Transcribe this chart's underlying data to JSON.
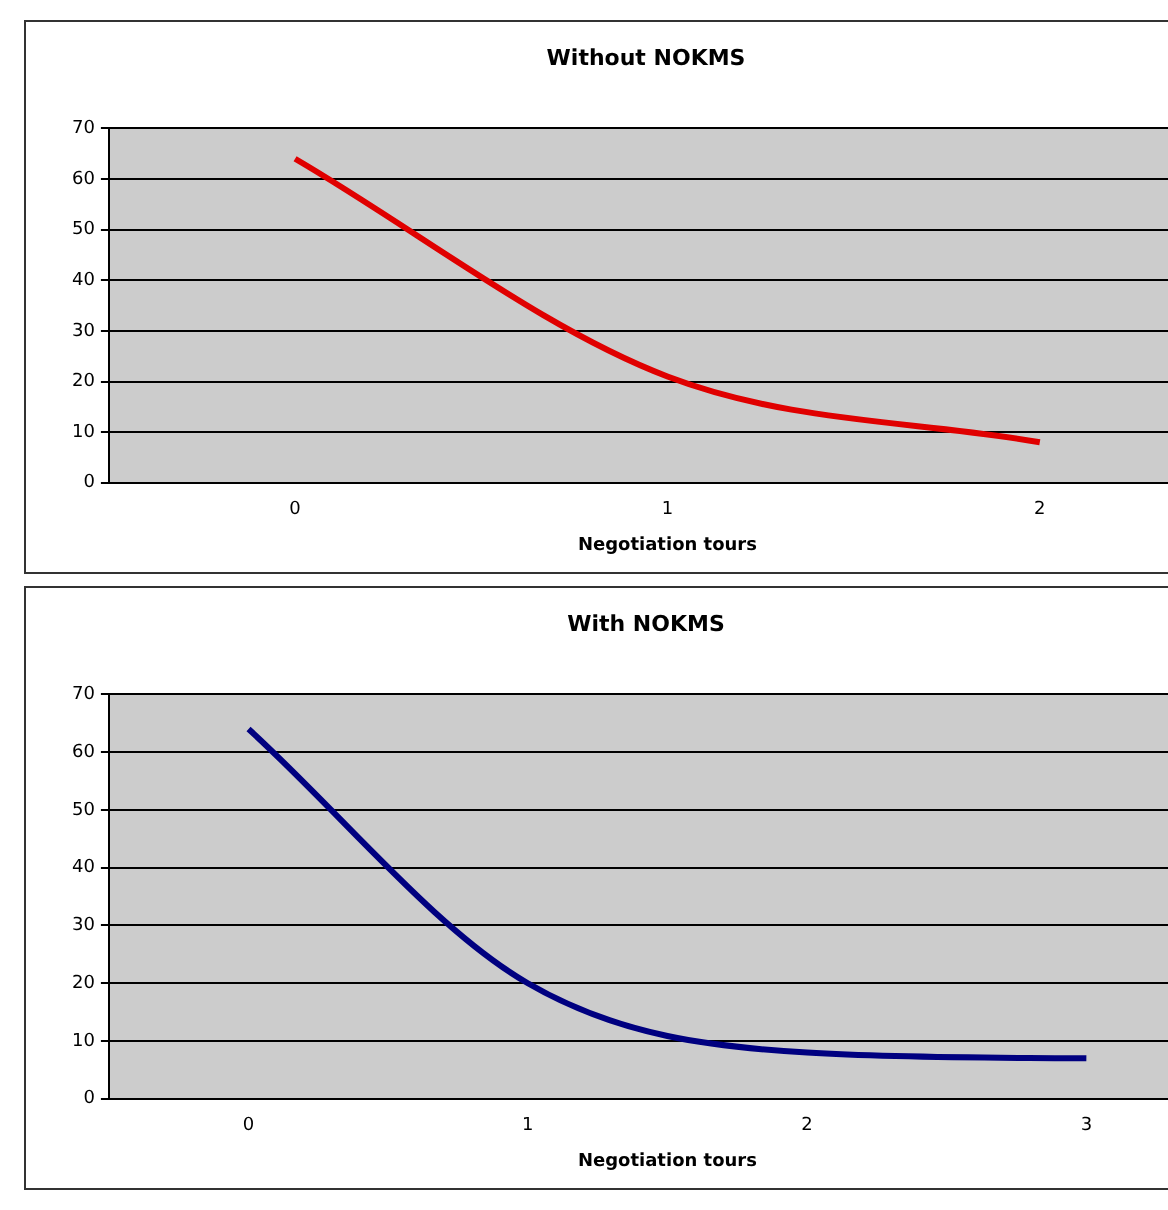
{
  "chart_data": [
    {
      "type": "line",
      "title": "Without NOKMS",
      "xlabel": "Negotiation tours",
      "categories": [
        "0",
        "1",
        "2"
      ],
      "series": [
        {
          "color": "#e00000",
          "values": [
            64,
            21,
            8
          ]
        }
      ],
      "ylim": [
        0,
        70
      ],
      "yticks": [
        0,
        10,
        20,
        30,
        40,
        50,
        60,
        70
      ],
      "grid": "y",
      "marker": "none"
    },
    {
      "type": "line",
      "title": "With NOKMS",
      "xlabel": "Negotiation tours",
      "categories": [
        "0",
        "1",
        "2",
        "3"
      ],
      "series": [
        {
          "color": "#000080",
          "values": [
            64,
            20,
            8,
            7
          ]
        }
      ],
      "ylim": [
        0,
        70
      ],
      "yticks": [
        0,
        10,
        20,
        30,
        40,
        50,
        60,
        70
      ],
      "grid": "y",
      "marker": "none"
    }
  ]
}
